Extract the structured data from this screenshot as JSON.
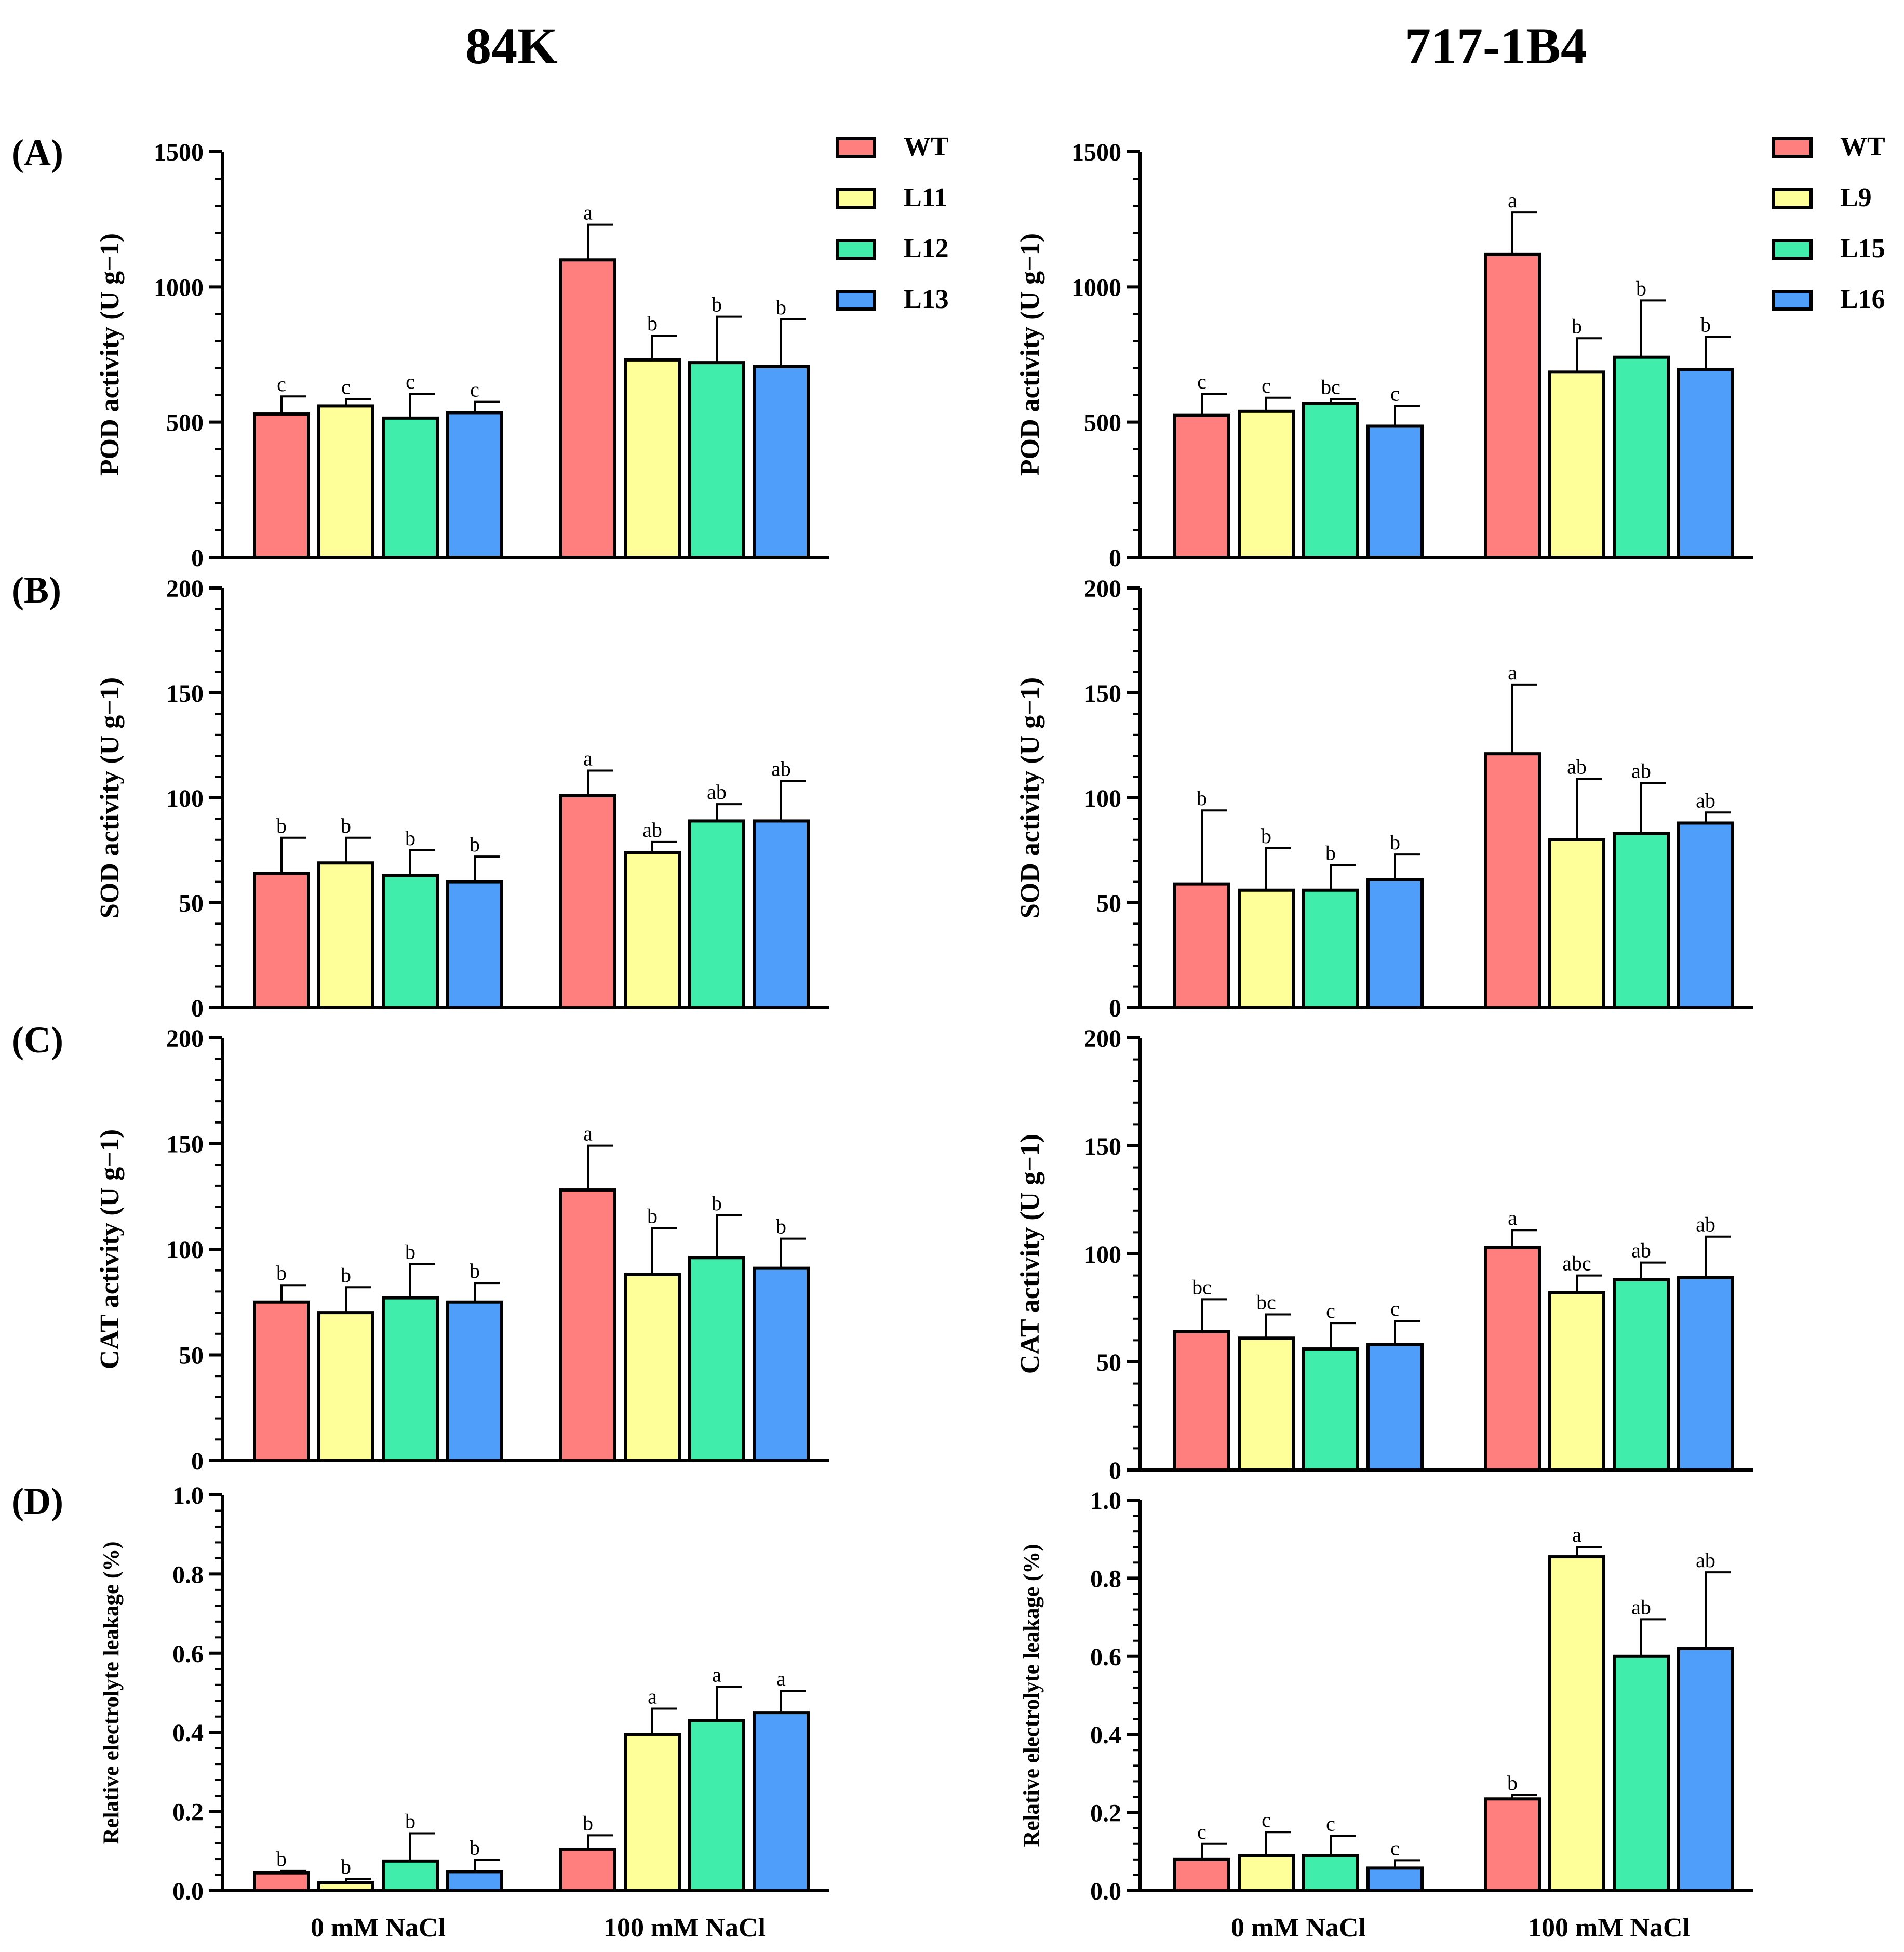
{
  "figure": {
    "col_titles": [
      "84K",
      "717-1B4"
    ],
    "panel_labels": [
      "(A)",
      "(B)",
      "(C)",
      "(D)"
    ],
    "colors": {
      "WT": "#FF7F7F",
      "line2": "#FFFF99",
      "line3": "#40EDAA",
      "line4": "#4F9EFA",
      "edge": "#000000"
    }
  },
  "chart_data": [
    {
      "id": "84K-POD",
      "type": "bar",
      "panel": "(A)",
      "column": "84K",
      "ylabel": "POD activity (U g−1)",
      "ylim": [
        0,
        1500
      ],
      "yticks": [
        0,
        500,
        1000,
        1500
      ],
      "categories": [
        "0 mM NaCl",
        "100 mM NaCl"
      ],
      "legend": [
        "WT",
        "L11",
        "L12",
        "L13"
      ],
      "series": [
        {
          "name": "WT",
          "values": [
            530,
            1100
          ],
          "errors": [
            65,
            130
          ],
          "letters": [
            "c",
            "a"
          ]
        },
        {
          "name": "L11",
          "values": [
            560,
            730
          ],
          "errors": [
            25,
            90
          ],
          "letters": [
            "c",
            "b"
          ]
        },
        {
          "name": "L12",
          "values": [
            515,
            720
          ],
          "errors": [
            90,
            170
          ],
          "letters": [
            "c",
            "b"
          ]
        },
        {
          "name": "L13",
          "values": [
            535,
            705
          ],
          "errors": [
            40,
            175
          ],
          "letters": [
            "c",
            "b"
          ]
        }
      ]
    },
    {
      "id": "717-POD",
      "type": "bar",
      "panel": "(A)",
      "column": "717-1B4",
      "ylabel": "POD activity (U g−1)",
      "ylim": [
        0,
        1500
      ],
      "yticks": [
        0,
        500,
        1000,
        1500
      ],
      "categories": [
        "0 mM NaCl",
        "100 mM NaCl"
      ],
      "legend": [
        "WT",
        "L9",
        "L15",
        "L16"
      ],
      "series": [
        {
          "name": "WT",
          "values": [
            525,
            1120
          ],
          "errors": [
            80,
            155
          ],
          "letters": [
            "c",
            "a"
          ]
        },
        {
          "name": "L9",
          "values": [
            540,
            685
          ],
          "errors": [
            50,
            125
          ],
          "letters": [
            "c",
            "b"
          ]
        },
        {
          "name": "L15",
          "values": [
            570,
            740
          ],
          "errors": [
            15,
            210
          ],
          "letters": [
            "bc",
            "b"
          ]
        },
        {
          "name": "L16",
          "values": [
            485,
            695
          ],
          "errors": [
            75,
            120
          ],
          "letters": [
            "c",
            "b"
          ]
        }
      ]
    },
    {
      "id": "84K-SOD",
      "type": "bar",
      "panel": "(B)",
      "column": "84K",
      "ylabel": "SOD activity (U g−1)",
      "ylim": [
        0,
        200
      ],
      "yticks": [
        0,
        50,
        100,
        150,
        200
      ],
      "categories": [
        "0 mM NaCl",
        "100 mM NaCl"
      ],
      "series": [
        {
          "name": "WT",
          "values": [
            64,
            101
          ],
          "errors": [
            17,
            12
          ],
          "letters": [
            "b",
            "a"
          ]
        },
        {
          "name": "L11",
          "values": [
            69,
            74
          ],
          "errors": [
            12,
            5
          ],
          "letters": [
            "b",
            "ab"
          ]
        },
        {
          "name": "L12",
          "values": [
            63,
            89
          ],
          "errors": [
            12,
            8
          ],
          "letters": [
            "b",
            "ab"
          ]
        },
        {
          "name": "L13",
          "values": [
            60,
            89
          ],
          "errors": [
            12,
            19
          ],
          "letters": [
            "b",
            "ab"
          ]
        }
      ]
    },
    {
      "id": "717-SOD",
      "type": "bar",
      "panel": "(B)",
      "column": "717-1B4",
      "ylabel": "SOD activity (U g−1)",
      "ylim": [
        0,
        200
      ],
      "yticks": [
        0,
        50,
        100,
        150,
        200
      ],
      "categories": [
        "0 mM NaCl",
        "100 mM NaCl"
      ],
      "series": [
        {
          "name": "WT",
          "values": [
            59,
            121
          ],
          "errors": [
            35,
            33
          ],
          "letters": [
            "b",
            "a"
          ]
        },
        {
          "name": "L9",
          "values": [
            56,
            80
          ],
          "errors": [
            20,
            29
          ],
          "letters": [
            "b",
            "ab"
          ]
        },
        {
          "name": "L15",
          "values": [
            56,
            83
          ],
          "errors": [
            12,
            24
          ],
          "letters": [
            "b",
            "ab"
          ]
        },
        {
          "name": "L16",
          "values": [
            61,
            88
          ],
          "errors": [
            12,
            5
          ],
          "letters": [
            "b",
            "ab"
          ]
        }
      ]
    },
    {
      "id": "84K-CAT",
      "type": "bar",
      "panel": "(C)",
      "column": "84K",
      "ylabel": "CAT activity (U g−1)",
      "ylim": [
        0,
        200
      ],
      "yticks": [
        0,
        50,
        100,
        150,
        200
      ],
      "categories": [
        "0 mM NaCl",
        "100 mM NaCl"
      ],
      "series": [
        {
          "name": "WT",
          "values": [
            75,
            128
          ],
          "errors": [
            8,
            21
          ],
          "letters": [
            "b",
            "a"
          ]
        },
        {
          "name": "L11",
          "values": [
            70,
            88
          ],
          "errors": [
            12,
            22
          ],
          "letters": [
            "b",
            "b"
          ]
        },
        {
          "name": "L12",
          "values": [
            77,
            96
          ],
          "errors": [
            16,
            20
          ],
          "letters": [
            "b",
            "b"
          ]
        },
        {
          "name": "L13",
          "values": [
            75,
            91
          ],
          "errors": [
            9,
            14
          ],
          "letters": [
            "b",
            "b"
          ]
        }
      ]
    },
    {
      "id": "717-CAT",
      "type": "bar",
      "panel": "(C)",
      "column": "717-1B4",
      "ylabel": "CAT activity (U g−1)",
      "ylim": [
        0,
        200
      ],
      "yticks": [
        0,
        50,
        100,
        150,
        200
      ],
      "categories": [
        "0 mM NaCl",
        "100 mM NaCl"
      ],
      "series": [
        {
          "name": "WT",
          "values": [
            64,
            103
          ],
          "errors": [
            15,
            8
          ],
          "letters": [
            "bc",
            "a"
          ]
        },
        {
          "name": "L9",
          "values": [
            61,
            82
          ],
          "errors": [
            11,
            8
          ],
          "letters": [
            "bc",
            "abc"
          ]
        },
        {
          "name": "L15",
          "values": [
            56,
            88
          ],
          "errors": [
            12,
            8
          ],
          "letters": [
            "c",
            "ab"
          ]
        },
        {
          "name": "L16",
          "values": [
            58,
            89
          ],
          "errors": [
            11,
            19
          ],
          "letters": [
            "c",
            "ab"
          ]
        }
      ]
    },
    {
      "id": "84K-REL",
      "type": "bar",
      "panel": "(D)",
      "column": "84K",
      "ylabel": "Relative electrolyte leakage (%)",
      "ylim": [
        0,
        1.0
      ],
      "yticks": [
        "0.0",
        "0.2",
        "0.4",
        "0.6",
        "0.8",
        "1.0"
      ],
      "categories": [
        "0 mM NaCl",
        "100 mM NaCl"
      ],
      "series": [
        {
          "name": "WT",
          "values": [
            0.045,
            0.105
          ],
          "errors": [
            0.005,
            0.035
          ],
          "letters": [
            "b",
            "b"
          ]
        },
        {
          "name": "L11",
          "values": [
            0.02,
            0.395
          ],
          "errors": [
            0.01,
            0.065
          ],
          "letters": [
            "b",
            "a"
          ]
        },
        {
          "name": "L12",
          "values": [
            0.075,
            0.43
          ],
          "errors": [
            0.07,
            0.085
          ],
          "letters": [
            "b",
            "a"
          ]
        },
        {
          "name": "L13",
          "values": [
            0.048,
            0.45
          ],
          "errors": [
            0.03,
            0.055
          ],
          "letters": [
            "b",
            "a"
          ]
        }
      ]
    },
    {
      "id": "717-REL",
      "type": "bar",
      "panel": "(D)",
      "column": "717-1B4",
      "ylabel": "Relative electrolyte leakage (%)",
      "ylim": [
        0,
        1.0
      ],
      "yticks": [
        "0.0",
        "0.2",
        "0.4",
        "0.6",
        "0.8",
        "1.0"
      ],
      "categories": [
        "0 mM NaCl",
        "100 mM NaCl"
      ],
      "series": [
        {
          "name": "WT",
          "values": [
            0.08,
            0.235
          ],
          "errors": [
            0.04,
            0.01
          ],
          "letters": [
            "c",
            "b"
          ]
        },
        {
          "name": "L9",
          "values": [
            0.09,
            0.855
          ],
          "errors": [
            0.06,
            0.025
          ],
          "letters": [
            "c",
            "a"
          ]
        },
        {
          "name": "L15",
          "values": [
            0.09,
            0.6
          ],
          "errors": [
            0.05,
            0.095
          ],
          "letters": [
            "c",
            "ab"
          ]
        },
        {
          "name": "L16",
          "values": [
            0.058,
            0.62
          ],
          "errors": [
            0.02,
            0.195
          ],
          "letters": [
            "c",
            "ab"
          ]
        }
      ]
    }
  ]
}
